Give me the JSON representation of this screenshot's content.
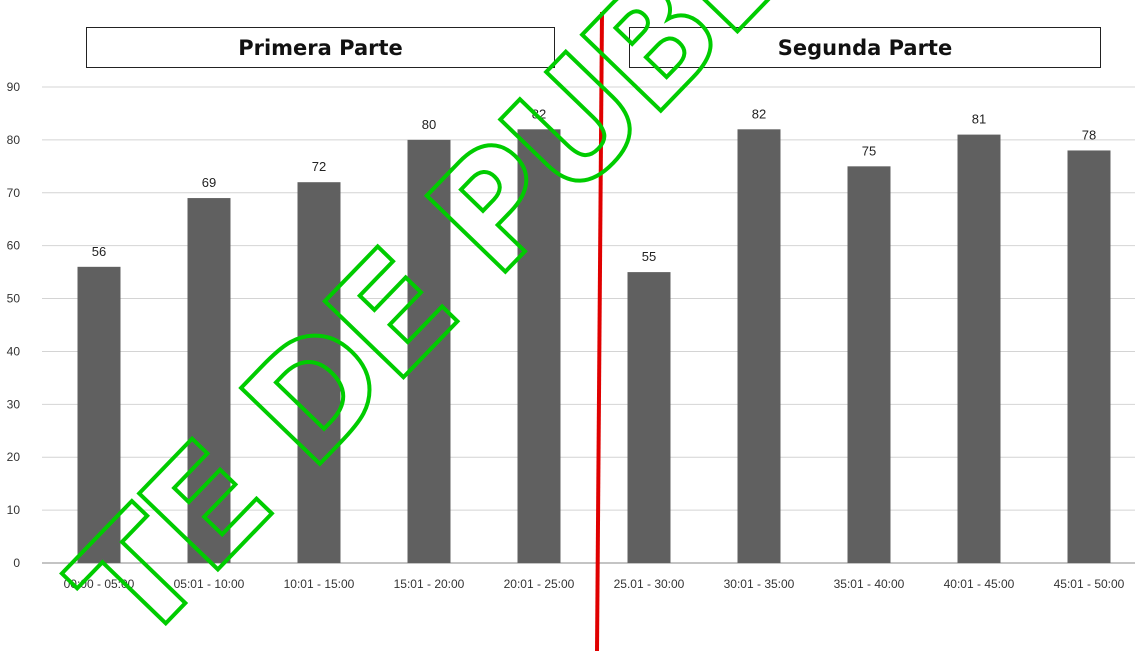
{
  "chart_data": {
    "type": "bar",
    "section_titles": [
      "Primera Parte",
      "Segunda Parte"
    ],
    "categories": [
      "00:00 - 05:00",
      "05:01 - 10:00",
      "10:01 - 15:00",
      "15:01 - 20:00",
      "20:01 - 25:00",
      "25.01 - 30:00",
      "30:01 - 35:00",
      "35:01 - 40:00",
      "40:01 - 45:00",
      "45:01 - 50:00"
    ],
    "values": [
      56,
      69,
      72,
      80,
      82,
      55,
      82,
      75,
      81,
      78
    ],
    "data_labels": [
      "56",
      "69",
      "72",
      "80",
      "82",
      "55",
      "82",
      "75",
      "81",
      "78"
    ],
    "yticks": [
      "0",
      "10",
      "20",
      "30",
      "40",
      "50",
      "60",
      "70",
      "80",
      "90"
    ],
    "ylim": [
      0,
      90
    ],
    "grid": true,
    "bar_color": "#606060",
    "divider_color": "#e00000",
    "watermark_color": "#00cc00",
    "watermark_text": "TE DE PUBLICAC"
  }
}
